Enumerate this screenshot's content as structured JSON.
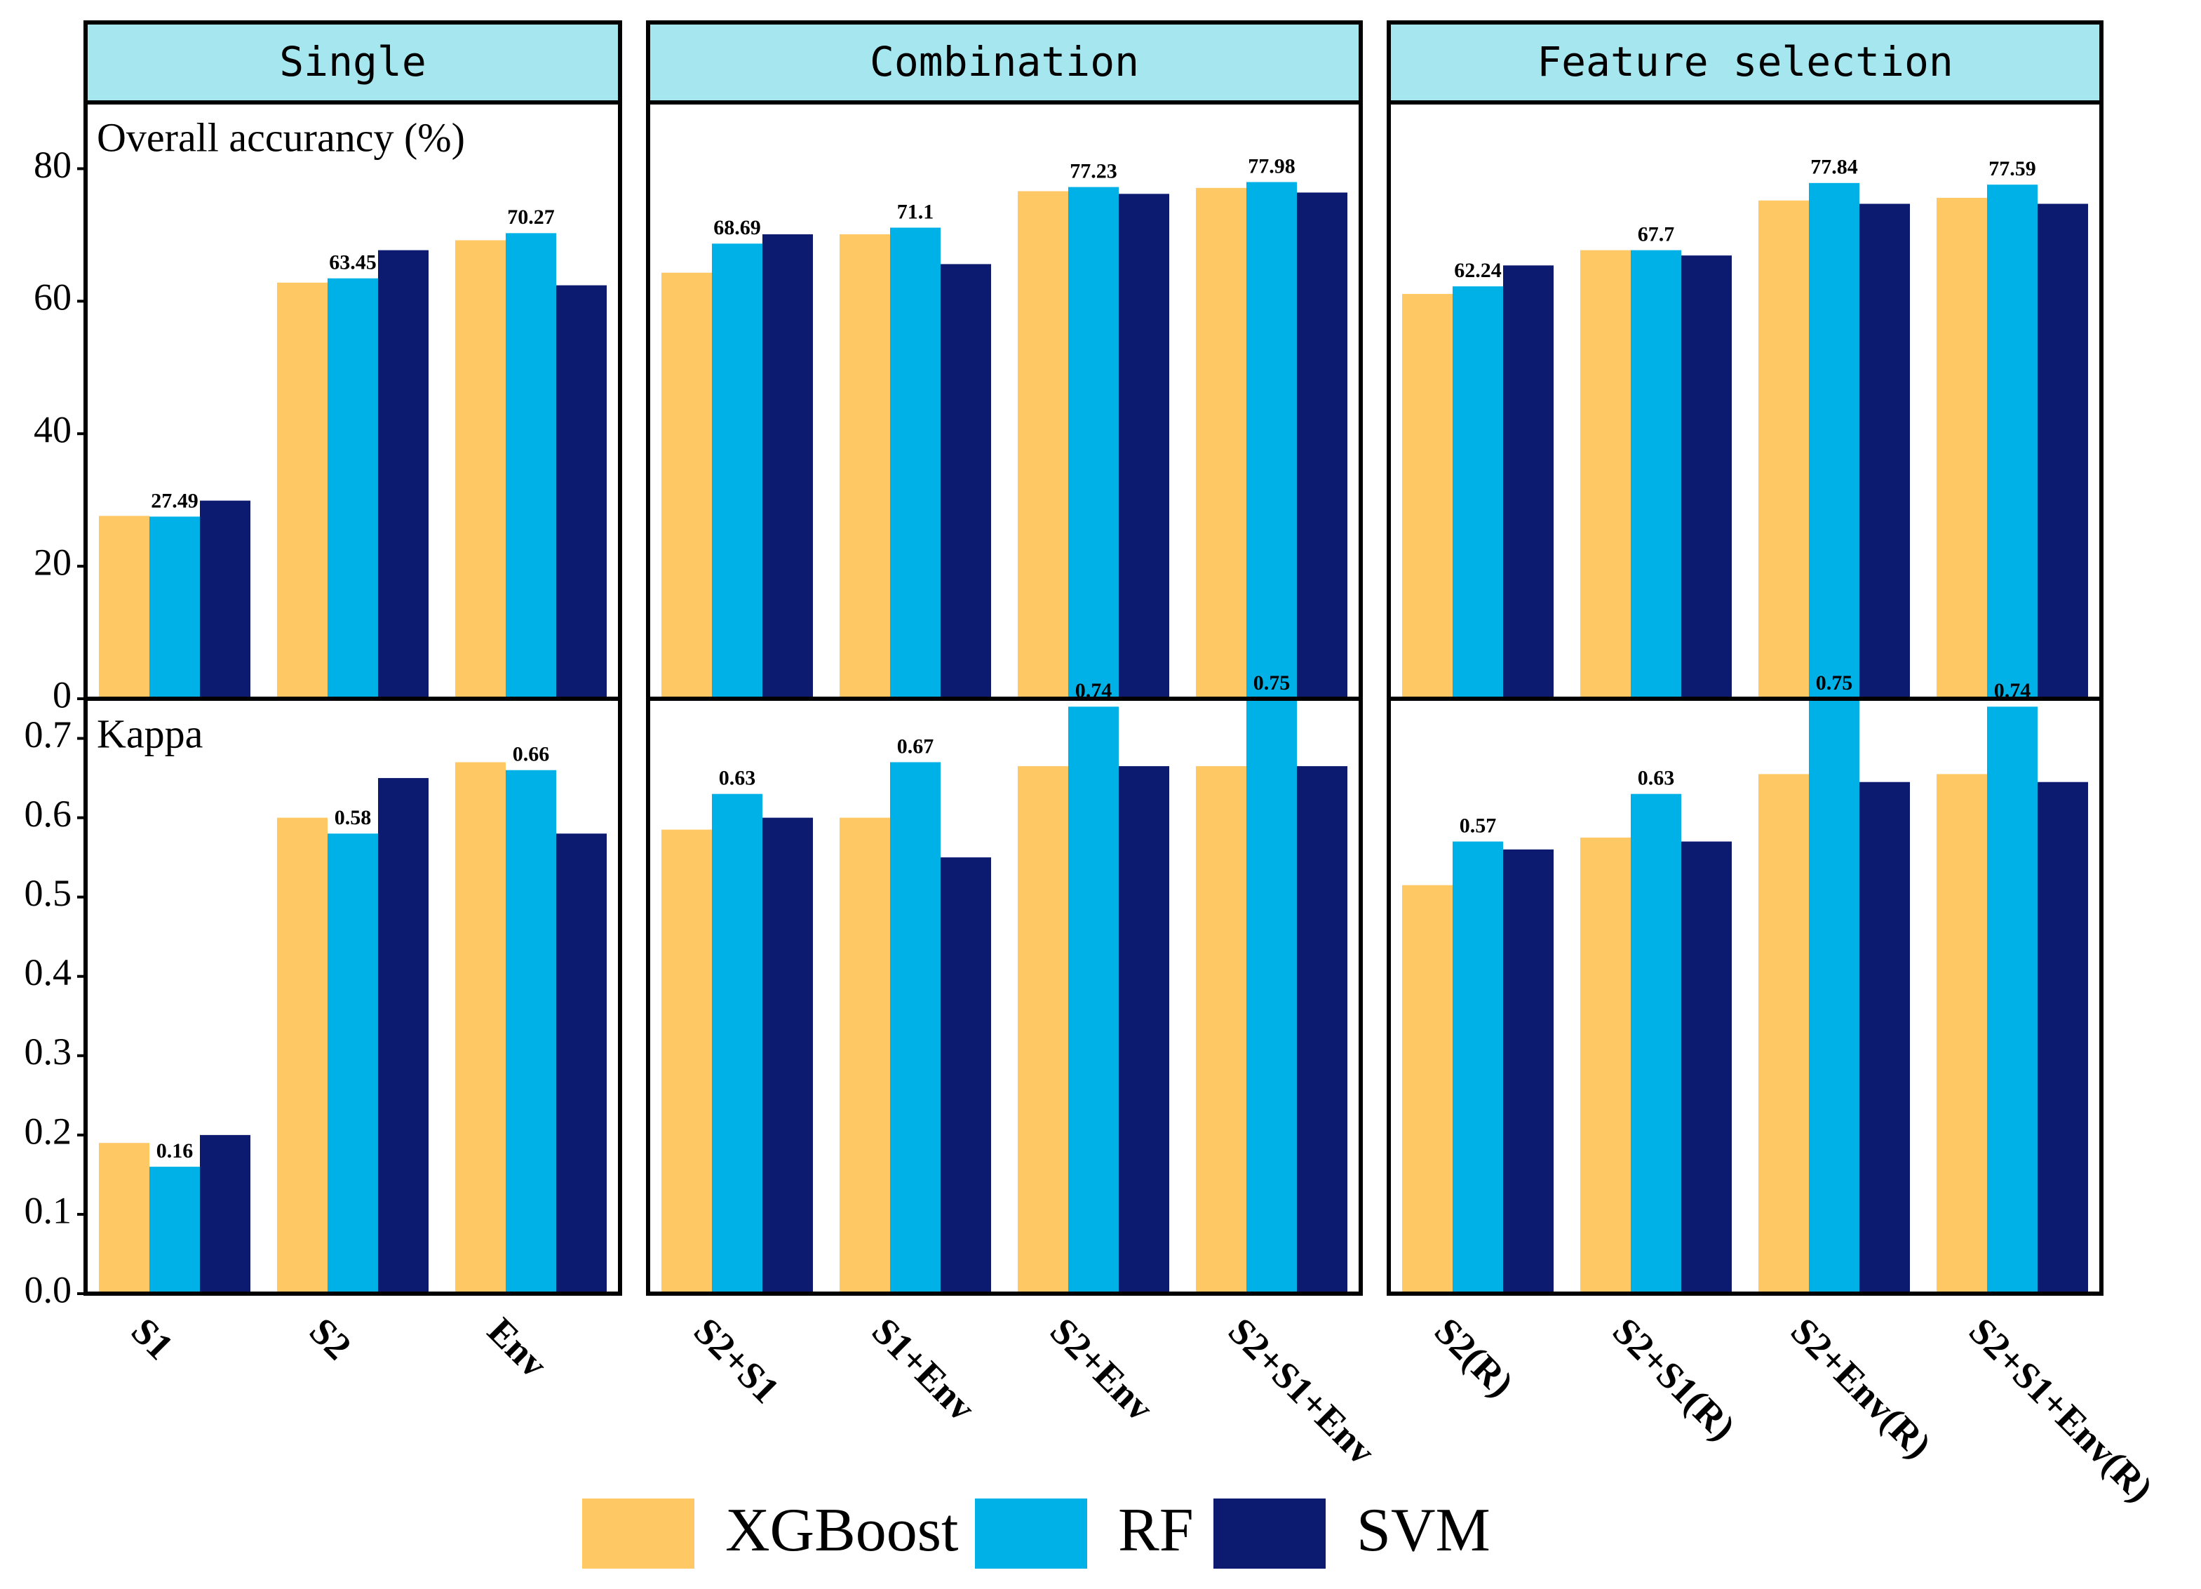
{
  "chart_data": {
    "type": "bar",
    "series": [
      {
        "name": "XGBoost",
        "color": "#fec965"
      },
      {
        "name": "RF",
        "color": "#00b1e7"
      },
      {
        "name": "SVM",
        "color": "#0c1a70"
      }
    ],
    "labeled_series": 1,
    "strip_color": "#a6e6ee",
    "grid": false,
    "columns": [
      {
        "title": "Single",
        "categories": [
          "S1",
          "S2",
          "Env"
        ]
      },
      {
        "title": "Combination",
        "categories": [
          "S2+S1",
          "S1+Env",
          "S2+Env",
          "S2+S1+Env"
        ]
      },
      {
        "title": "Feature selection",
        "categories": [
          "S2(R)",
          "S2+S1(R)",
          "S2+Env(R)",
          "S2+S1+Env(R)"
        ]
      }
    ],
    "rows": [
      {
        "ylabel": "Overall accurancy (%)",
        "ylim": [
          0,
          90
        ],
        "yticks": [
          0,
          20,
          40,
          60,
          80
        ],
        "panels": [
          {
            "values": [
              [
                27.6,
                62.8,
                69.2
              ],
              [
                27.49,
                63.45,
                70.27
              ],
              [
                29.9,
                67.7,
                62.4
              ]
            ]
          },
          {
            "values": [
              [
                64.3,
                70.1,
                76.6,
                77.1
              ],
              [
                68.69,
                71.1,
                77.23,
                77.98
              ],
              [
                70.1,
                65.6,
                76.2,
                76.4
              ]
            ]
          },
          {
            "values": [
              [
                61.1,
                67.7,
                75.2,
                75.6
              ],
              [
                62.24,
                67.7,
                77.84,
                77.59
              ],
              [
                65.4,
                66.9,
                74.7,
                74.7
              ]
            ]
          }
        ]
      },
      {
        "ylabel": "Kappa",
        "ylim": [
          0,
          0.75
        ],
        "yticks": [
          {
            "value": 0,
            "label": "0.0"
          },
          0.1,
          0.2,
          0.3,
          0.4,
          0.5,
          0.6,
          0.7
        ],
        "panels": [
          {
            "values": [
              [
                0.19,
                0.6,
                0.67
              ],
              [
                0.16,
                0.58,
                0.66
              ],
              [
                0.2,
                0.65,
                0.58
              ]
            ]
          },
          {
            "values": [
              [
                0.585,
                0.6,
                0.665,
                0.665
              ],
              [
                0.63,
                0.67,
                0.74,
                0.75
              ],
              [
                0.6,
                0.55,
                0.665,
                0.665
              ]
            ]
          },
          {
            "values": [
              [
                0.515,
                0.575,
                0.655,
                0.655
              ],
              [
                0.57,
                0.63,
                0.75,
                0.74
              ],
              [
                0.56,
                0.57,
                0.645,
                0.645
              ]
            ]
          }
        ]
      }
    ]
  }
}
